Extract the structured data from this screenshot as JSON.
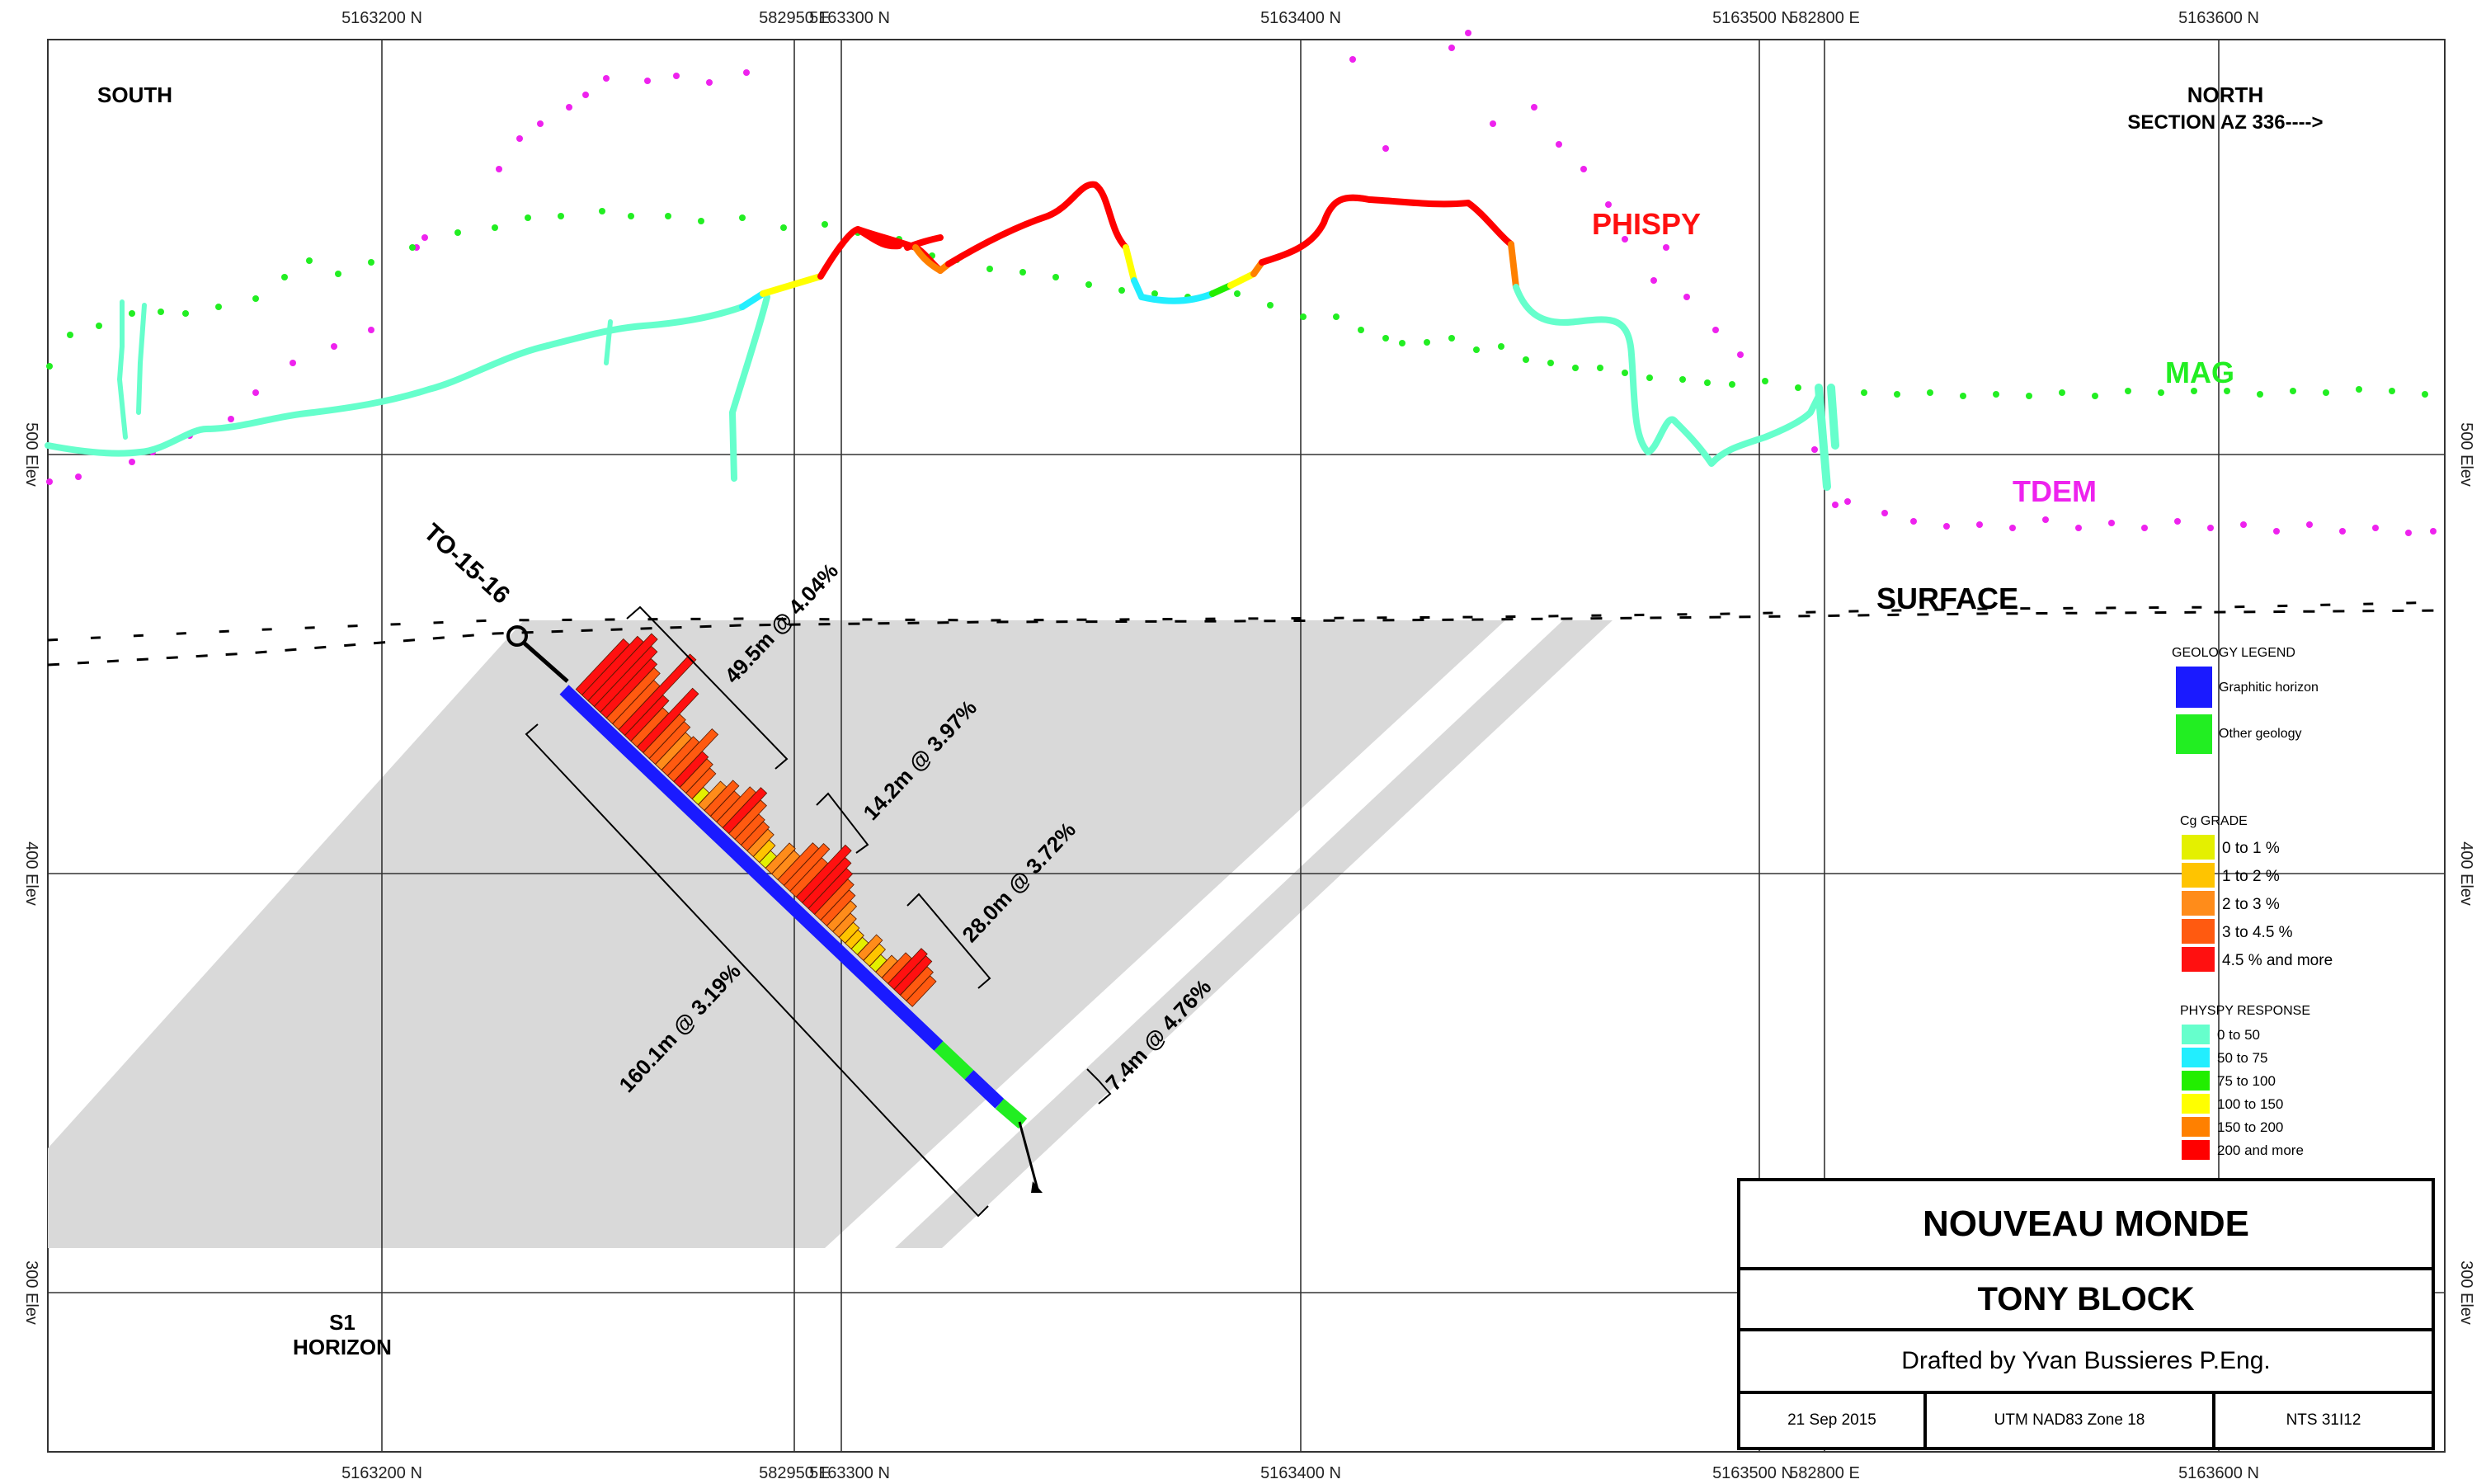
{
  "grid": {
    "northings": [
      "5163200 N",
      "5163300 N",
      "5163400 N",
      "5163500 N",
      "5163600 N"
    ],
    "eastings": [
      "582950 E",
      "582800 E"
    ],
    "elevations": [
      "500 Elev",
      "400 Elev",
      "300 Elev"
    ]
  },
  "labels": {
    "south": "SOUTH",
    "north": "NORTH",
    "section_az": "SECTION AZ 336---->",
    "phispy": "PHISPY",
    "mag": "MAG",
    "tdem": "TDEM",
    "surface": "SURFACE",
    "hole_id": "TO-15-16",
    "horizon_line1": "S1",
    "horizon_line2": "HORIZON"
  },
  "intervals": [
    {
      "text": "49.5m @ 4.04%"
    },
    {
      "text": "14.2m @ 3.97%"
    },
    {
      "text": "28.0m @ 3.72%"
    },
    {
      "text": "160.1m @ 3.19%"
    },
    {
      "text": "7.4m @ 4.76%"
    }
  ],
  "geology_legend": {
    "title": "GEOLOGY LEGEND",
    "items": [
      {
        "label": "Graphitic horizon",
        "color": "#1a1aff"
      },
      {
        "label": "Other geology",
        "color": "#22ee22"
      }
    ]
  },
  "grade_legend": {
    "title": "Cg GRADE",
    "items": [
      {
        "label": "0 to 1 %",
        "color": "#e4f000"
      },
      {
        "label": "1 to 2 %",
        "color": "#ffc400"
      },
      {
        "label": "2 to 3 %",
        "color": "#ff8c1a"
      },
      {
        "label": "3 to 4.5 %",
        "color": "#ff5a10"
      },
      {
        "label": "4.5 % and more",
        "color": "#ff1010"
      }
    ]
  },
  "physpy_legend": {
    "title": "PHYSPY RESPONSE",
    "items": [
      {
        "label": "0 to 50",
        "color": "#66ffcc"
      },
      {
        "label": "50 to 75",
        "color": "#22eeff"
      },
      {
        "label": "75 to 100",
        "color": "#22ee00"
      },
      {
        "label": "100 to 150",
        "color": "#ffff00"
      },
      {
        "label": "150 to 200",
        "color": "#ff8000"
      },
      {
        "label": "200 and more",
        "color": "#ff0000"
      }
    ]
  },
  "title_block": {
    "project": "NOUVEAU MONDE",
    "block": "TONY BLOCK",
    "drafted_by": "Drafted by Yvan Bussieres P.Eng.",
    "date": "21 Sep 2015",
    "datum": "UTM NAD83 Zone 18",
    "nts": "NTS 31I12"
  },
  "colors": {
    "mag": "#22ee22",
    "tdem": "#ee22ee",
    "phispy_high": "#ff0000",
    "phispy_low": "#66ffcc",
    "graphitic": "#1a1aff",
    "zone_fill": "#d9d9d9"
  }
}
